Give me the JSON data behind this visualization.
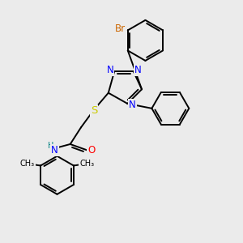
{
  "bg_color": "#ebebeb",
  "bond_color": "#000000",
  "bond_width": 1.4,
  "atom_colors": {
    "N": "#0000ff",
    "O": "#ff0000",
    "S": "#cccc00",
    "Br": "#cc6600",
    "H": "#008080",
    "C": "#000000"
  },
  "font_size": 8.5
}
